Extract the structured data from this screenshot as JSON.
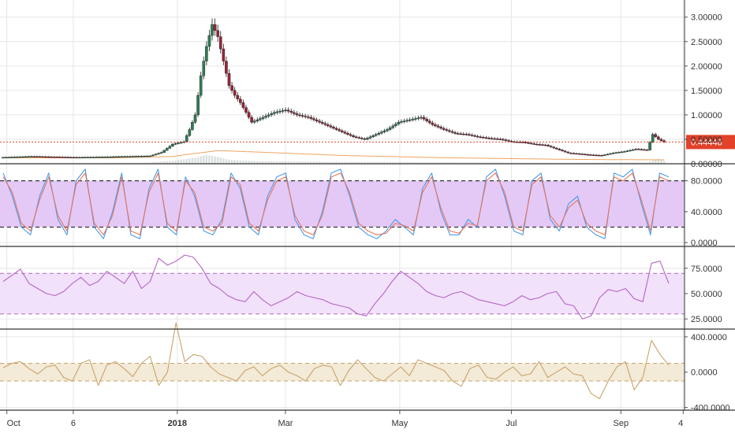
{
  "chart_data": [
    {
      "panel": "price",
      "type": "candlestick",
      "ylim": [
        0,
        3.35
      ],
      "yticks": [
        "0.00000",
        "0.50000",
        "1.00000",
        "1.50000",
        "2.00000",
        "2.50000",
        "3.00000"
      ],
      "ytick_values": [
        0,
        0.5,
        1.0,
        1.5,
        2.0,
        2.5,
        3.0
      ],
      "last_price": {
        "label": "0.44448",
        "value": 0.44448,
        "color": "#e2412a"
      },
      "close_trace": [
        [
          0,
          0.13
        ],
        [
          5,
          0.15
        ],
        [
          9,
          0.14
        ],
        [
          13,
          0.13
        ],
        [
          18,
          0.14
        ],
        [
          22,
          0.15
        ],
        [
          26,
          0.16
        ],
        [
          28,
          0.23
        ],
        [
          30,
          0.4
        ],
        [
          32,
          0.45
        ],
        [
          33,
          0.7
        ],
        [
          34,
          1.0
        ],
        [
          35,
          1.8
        ],
        [
          36,
          2.4
        ],
        [
          37,
          2.85
        ],
        [
          38,
          2.6
        ],
        [
          39,
          2.1
        ],
        [
          40,
          1.6
        ],
        [
          41,
          1.4
        ],
        [
          42,
          1.25
        ],
        [
          44,
          0.85
        ],
        [
          46,
          0.95
        ],
        [
          48,
          1.05
        ],
        [
          50,
          1.1
        ],
        [
          52,
          1.0
        ],
        [
          54,
          0.95
        ],
        [
          56,
          0.85
        ],
        [
          58,
          0.75
        ],
        [
          60,
          0.65
        ],
        [
          62,
          0.55
        ],
        [
          64,
          0.5
        ],
        [
          66,
          0.6
        ],
        [
          68,
          0.7
        ],
        [
          70,
          0.85
        ],
        [
          72,
          0.9
        ],
        [
          74,
          0.95
        ],
        [
          76,
          0.8
        ],
        [
          78,
          0.7
        ],
        [
          80,
          0.62
        ],
        [
          82,
          0.6
        ],
        [
          84,
          0.55
        ],
        [
          86,
          0.52
        ],
        [
          88,
          0.5
        ],
        [
          90,
          0.45
        ],
        [
          92,
          0.44
        ],
        [
          94,
          0.4
        ],
        [
          96,
          0.38
        ],
        [
          98,
          0.3
        ],
        [
          100,
          0.22
        ],
        [
          102,
          0.2
        ],
        [
          104,
          0.18
        ],
        [
          106,
          0.17
        ],
        [
          108,
          0.22
        ],
        [
          110,
          0.25
        ],
        [
          112,
          0.3
        ],
        [
          114,
          0.28
        ],
        [
          115,
          0.6
        ],
        [
          116,
          0.5
        ],
        [
          117,
          0.44448
        ]
      ],
      "volume_trace": [
        [
          0,
          0.01
        ],
        [
          25,
          0.02
        ],
        [
          30,
          0.06
        ],
        [
          34,
          0.12
        ],
        [
          36,
          0.18
        ],
        [
          38,
          0.14
        ],
        [
          40,
          0.08
        ],
        [
          45,
          0.05
        ],
        [
          60,
          0.04
        ],
        [
          80,
          0.03
        ],
        [
          100,
          0.02
        ],
        [
          114,
          0.03
        ],
        [
          116,
          0.1
        ],
        [
          117,
          0.06
        ]
      ],
      "ma_trace": [
        [
          0,
          0.12
        ],
        [
          20,
          0.12
        ],
        [
          30,
          0.15
        ],
        [
          38,
          0.27
        ],
        [
          45,
          0.24
        ],
        [
          60,
          0.17
        ],
        [
          80,
          0.12
        ],
        [
          100,
          0.09
        ],
        [
          117,
          0.08
        ]
      ]
    },
    {
      "panel": "stochastic",
      "type": "line",
      "ylim": [
        -5,
        100
      ],
      "yticks": [
        "0.0000",
        "40.0000",
        "80.0000"
      ],
      "ytick_values": [
        0,
        40,
        80
      ],
      "band": [
        20,
        80
      ],
      "series": [
        {
          "color": "#4a9be8",
          "values": [
            90,
            60,
            20,
            10,
            60,
            90,
            30,
            10,
            80,
            95,
            20,
            5,
            40,
            90,
            10,
            5,
            70,
            95,
            20,
            10,
            85,
            60,
            15,
            10,
            30,
            90,
            70,
            20,
            10,
            60,
            85,
            90,
            30,
            10,
            5,
            40,
            90,
            95,
            60,
            20,
            10,
            5,
            15,
            30,
            20,
            10,
            70,
            90,
            40,
            10,
            10,
            30,
            20,
            85,
            95,
            60,
            15,
            10,
            80,
            90,
            30,
            15,
            50,
            60,
            20,
            10,
            5,
            90,
            85,
            95,
            50,
            10,
            90,
            85
          ]
        },
        {
          "color": "#e8765a",
          "values": [
            85,
            65,
            25,
            15,
            55,
            85,
            35,
            15,
            75,
            90,
            25,
            10,
            35,
            85,
            15,
            10,
            65,
            90,
            25,
            15,
            80,
            65,
            20,
            15,
            25,
            85,
            75,
            25,
            15,
            55,
            80,
            85,
            35,
            15,
            10,
            35,
            85,
            90,
            65,
            25,
            15,
            10,
            12,
            25,
            22,
            15,
            65,
            85,
            45,
            15,
            12,
            25,
            22,
            80,
            90,
            65,
            20,
            15,
            75,
            85,
            35,
            20,
            45,
            55,
            25,
            15,
            10,
            85,
            80,
            90,
            55,
            15,
            85,
            80
          ]
        }
      ]
    },
    {
      "panel": "rsi",
      "type": "line",
      "ylim": [
        15,
        95
      ],
      "yticks": [
        "25.0000",
        "50.0000",
        "75.0000"
      ],
      "ytick_values": [
        25,
        50,
        75
      ],
      "band": [
        30,
        70
      ],
      "series": [
        {
          "color": "#b565c4",
          "values": [
            62,
            68,
            74,
            60,
            55,
            50,
            48,
            52,
            60,
            66,
            58,
            62,
            72,
            66,
            60,
            72,
            55,
            62,
            85,
            78,
            82,
            88,
            86,
            75,
            60,
            55,
            48,
            44,
            42,
            52,
            44,
            38,
            42,
            46,
            52,
            48,
            46,
            44,
            40,
            38,
            36,
            30,
            28,
            40,
            50,
            62,
            72,
            66,
            60,
            52,
            48,
            46,
            50,
            52,
            48,
            44,
            42,
            40,
            38,
            42,
            48,
            44,
            46,
            50,
            52,
            40,
            38,
            25,
            28,
            46,
            54,
            52,
            55,
            45,
            42,
            80,
            82,
            60
          ]
        }
      ]
    },
    {
      "panel": "cci",
      "type": "line",
      "ylim": [
        -430,
        470
      ],
      "yticks": [
        "-400.0000",
        "0.0000",
        "400.0000"
      ],
      "ytick_values": [
        -400,
        0,
        400
      ],
      "band": [
        -100,
        100
      ],
      "series": [
        {
          "color": "#c9a46c",
          "values": [
            50,
            100,
            120,
            40,
            -20,
            60,
            80,
            -60,
            -100,
            100,
            140,
            -150,
            80,
            120,
            40,
            -50,
            100,
            180,
            -150,
            0,
            560,
            120,
            200,
            180,
            60,
            -20,
            -60,
            -100,
            20,
            60,
            -40,
            40,
            80,
            0,
            -40,
            -100,
            40,
            80,
            60,
            -150,
            20,
            140,
            40,
            -60,
            -100,
            -20,
            60,
            -40,
            140,
            100,
            60,
            20,
            -100,
            -160,
            40,
            80,
            -60,
            -80,
            0,
            60,
            -40,
            -20,
            120,
            -60,
            0,
            60,
            -20,
            -40,
            -240,
            -300,
            -100,
            60,
            120,
            -200,
            -60,
            360,
            200,
            80
          ]
        }
      ]
    },
    {
      "panel": "x-axis",
      "type": "axis",
      "xticks": [
        {
          "label": "Oct",
          "pos": 0.01,
          "bold": false
        },
        {
          "label": "6",
          "pos": 0.107,
          "bold": false
        },
        {
          "label": "2018",
          "pos": 0.259,
          "bold": true
        },
        {
          "label": "Mar",
          "pos": 0.417,
          "bold": false
        },
        {
          "label": "May",
          "pos": 0.584,
          "bold": false
        },
        {
          "label": "Jul",
          "pos": 0.747,
          "bold": false
        },
        {
          "label": "Sep",
          "pos": 0.907,
          "bold": false
        },
        {
          "label": "4",
          "pos": 0.998,
          "bold": false
        }
      ]
    }
  ],
  "colors": {
    "up_candle": "#2e7d57",
    "down_candle": "#9b2335",
    "grid": "#e6e6e6",
    "separator": "#333333",
    "stoch_band": "#e4c9f7",
    "rsi_band": "#f1e1fb",
    "cci_band": "#f3ead7"
  }
}
